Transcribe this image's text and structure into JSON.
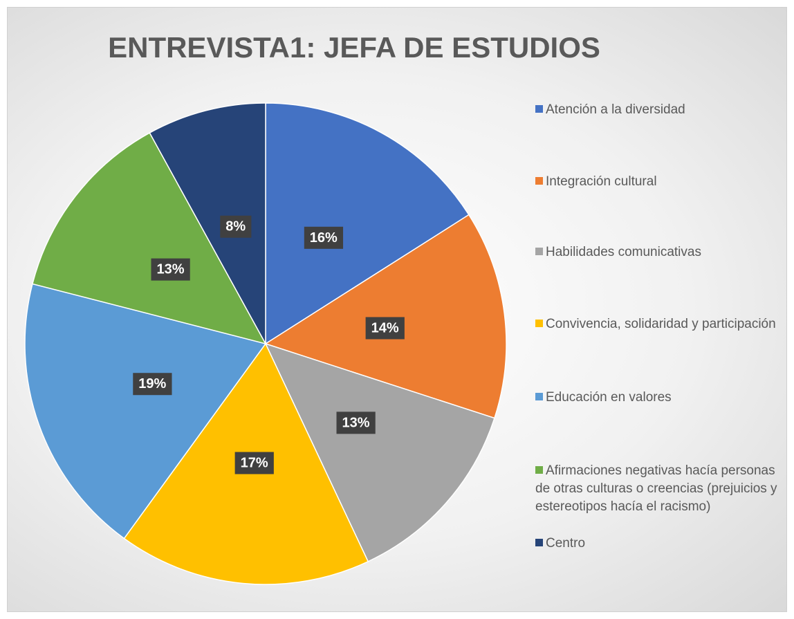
{
  "chart_data": {
    "type": "pie",
    "title": "ENTREVISTA1: JEFA DE ESTUDIOS",
    "categories": [
      "Atención a la diversidad",
      "Integración cultural",
      "Habilidades comunicativas",
      "Convivencia, solidaridad y participación",
      "Educación en valores",
      "Afirmaciones negativas hacía personas de otras culturas o creencias (prejuicios y estereotipos hacía el racismo)",
      "Centro"
    ],
    "values": [
      16,
      14,
      13,
      17,
      19,
      13,
      8
    ],
    "value_labels": [
      "16%",
      "14%",
      "13%",
      "17%",
      "19%",
      "13%",
      "8%"
    ],
    "colors": [
      "#4472c4",
      "#ed7d31",
      "#a5a5a5",
      "#ffc000",
      "#5b9bd5",
      "#70ad47",
      "#264478"
    ],
    "legend": "right"
  }
}
